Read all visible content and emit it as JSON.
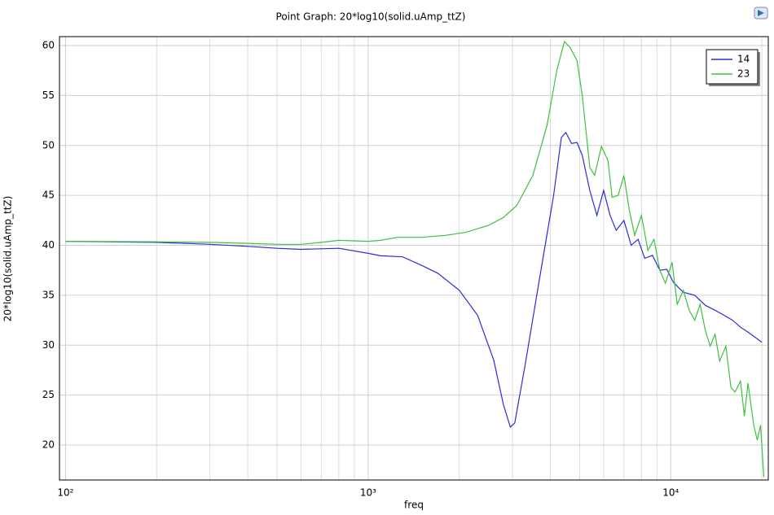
{
  "chart_data": {
    "type": "line",
    "title": "Point Graph: 20*log10(solid.uAmp_ttZ)",
    "x_label": "freq",
    "y_label": "20*log10(solid.uAmp_ttZ)",
    "xscale": "log",
    "grid": true,
    "legend_position": "upper right",
    "xlim": [
      95.5,
      21000
    ],
    "ylim": [
      16.5,
      60.9
    ],
    "xticks": [
      {
        "value": 100,
        "label": "10²"
      },
      {
        "value": 1000,
        "label": "10³"
      },
      {
        "value": 10000,
        "label": "10⁴"
      }
    ],
    "xminorticks": [
      200,
      300,
      400,
      500,
      600,
      700,
      800,
      900,
      2000,
      3000,
      4000,
      5000,
      6000,
      7000,
      8000,
      9000,
      20000
    ],
    "yticks": [
      20,
      25,
      30,
      35,
      40,
      45,
      50,
      55,
      60
    ],
    "series": [
      {
        "name": "14",
        "color": "#2b2bdc",
        "x": [
          100,
          200,
          300,
          400,
          500,
          600,
          800,
          1000,
          1100,
          1300,
          1500,
          1700,
          2000,
          2300,
          2600,
          2800,
          2950,
          3050,
          3300,
          3700,
          4100,
          4350,
          4500,
          4700,
          4900,
          5100,
          5400,
          5700,
          6000,
          6300,
          6600,
          7000,
          7400,
          7800,
          8200,
          8700,
          9200,
          9700,
          10200,
          11000,
          12000,
          13000,
          14000,
          15000,
          16000,
          17000,
          18000,
          20000
        ],
        "values": [
          40.4,
          40.3,
          40.1,
          39.9,
          39.7,
          39.6,
          39.7,
          39.2,
          38.95,
          38.85,
          38.0,
          37.2,
          35.5,
          33,
          28.5,
          24,
          21.8,
          22.2,
          28,
          37,
          45,
          50.8,
          51.3,
          50.2,
          50.3,
          49,
          45.5,
          43.0,
          45.5,
          43,
          41.5,
          42.5,
          40,
          40.6,
          38.7,
          39.0,
          37.5,
          37.6,
          36.3,
          35.3,
          35,
          34,
          33.5,
          33.0,
          32.5,
          31.8,
          31.3,
          30.3
        ]
      },
      {
        "name": "23",
        "color": "#3fbf3f",
        "x": [
          100,
          200,
          300,
          400,
          500,
          600,
          700,
          800,
          1000,
          1100,
          1250,
          1500,
          1800,
          2100,
          2500,
          2800,
          3100,
          3500,
          3900,
          4200,
          4450,
          4650,
          4900,
          5100,
          5400,
          5600,
          5900,
          6200,
          6400,
          6700,
          7000,
          7300,
          7600,
          8000,
          8400,
          8800,
          9200,
          9600,
          10100,
          10500,
          11000,
          11500,
          12000,
          12500,
          13000,
          13500,
          14000,
          14500,
          15200,
          15800,
          16300,
          17000,
          17500,
          18000,
          18800,
          19300,
          19800,
          20300
        ],
        "values": [
          40.4,
          40.35,
          40.3,
          40.2,
          40.1,
          40.1,
          40.3,
          40.5,
          40.4,
          40.5,
          40.8,
          40.8,
          41.0,
          41.3,
          42.0,
          42.8,
          44.0,
          47,
          52,
          57.5,
          60.4,
          59.8,
          58.5,
          55,
          47.8,
          47.0,
          49.9,
          48.5,
          44.8,
          45.0,
          47.0,
          43.5,
          41,
          43,
          39.5,
          40.6,
          37.5,
          36.2,
          38.3,
          34.1,
          35.5,
          33.5,
          32.5,
          34.1,
          31.5,
          29.9,
          31.1,
          28.4,
          29.9,
          25.8,
          25.3,
          26.4,
          22.9,
          26.2,
          22.0,
          20.5,
          22.0,
          16.8
        ]
      }
    ]
  }
}
